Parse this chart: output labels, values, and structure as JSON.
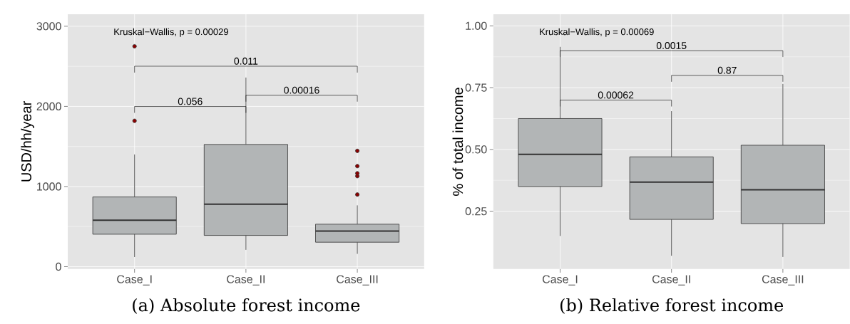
{
  "chart_data": [
    {
      "type": "box",
      "title": "(a) Absolute forest income",
      "ylabel": "USD/hh/year",
      "categories": [
        "Case_I",
        "Case_II",
        "Case_III"
      ],
      "color": "#b2b5b6",
      "grid": true,
      "ylim": [
        -30,
        3150
      ],
      "yticks": [
        0,
        1000,
        2000,
        3000
      ],
      "boxes": [
        {
          "low": 120,
          "q1": 405,
          "median": 580,
          "q3": 870,
          "high": 1400,
          "outliers": [
            1820,
            2750
          ]
        },
        {
          "low": 210,
          "q1": 390,
          "median": 780,
          "q3": 1525,
          "high": 2360
        },
        {
          "low": 160,
          "q1": 305,
          "median": 445,
          "q3": 530,
          "high": 765,
          "outliers": [
            900,
            1130,
            1165,
            1255,
            1445
          ]
        }
      ],
      "annotations": [
        "Kruskal−Wallis, p = 0.00029",
        "0.011",
        "0.056",
        "0.00016"
      ]
    },
    {
      "type": "box",
      "title": "(b) Relative forest income",
      "ylabel": "% of total income",
      "categories": [
        "Case_I",
        "Case_II",
        "Case_III"
      ],
      "color": "#b2b5b6",
      "grid": true,
      "ylim": [
        0.016,
        1.047
      ],
      "yticks": [
        0.25,
        {
          "value": 0.5,
          "label": "0.50"
        },
        0.75,
        {
          "value": 1,
          "label": "1.00"
        }
      ],
      "boxes": [
        {
          "low": 0.15,
          "q1": 0.35,
          "median": 0.48,
          "q3": 0.625,
          "high": 0.915
        },
        {
          "low": 0.07,
          "q1": 0.217,
          "median": 0.368,
          "q3": 0.47,
          "high": 0.655
        },
        {
          "low": 0.065,
          "q1": 0.2,
          "median": 0.337,
          "q3": 0.517,
          "high": 0.765
        }
      ],
      "annotations": [
        "Kruskal−Wallis, p = 0.00069",
        "0.0015",
        "0.00062",
        "0.87"
      ]
    }
  ]
}
